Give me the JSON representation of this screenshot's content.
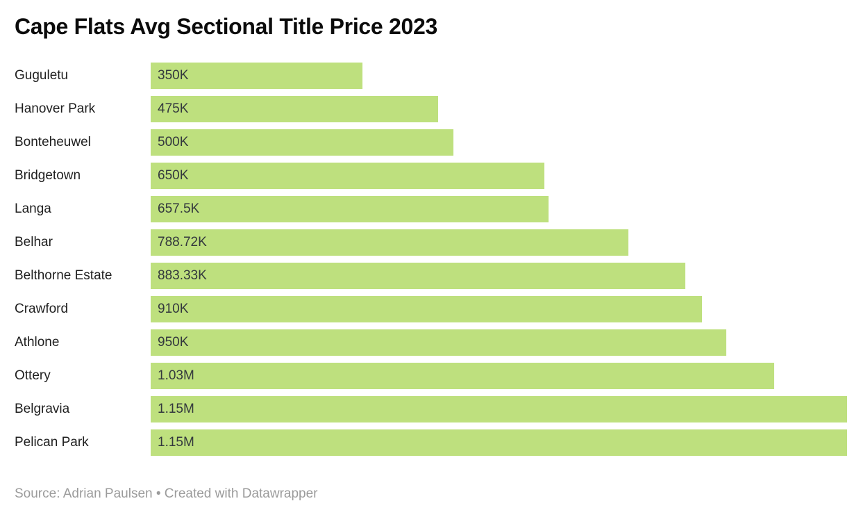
{
  "title": "Cape Flats Avg Sectional Title Price 2023",
  "footer": {
    "full_text": "Source: Adrian Paulsen • Created with Datawrapper"
  },
  "colors": {
    "background": "#ffffff",
    "bar_fill": "#bee07e",
    "title_text": "#0b0b0b",
    "category_label_text": "#1f1f1f",
    "value_label_text": "#33383d",
    "footer_text": "#9b9b9b"
  },
  "chart_data": {
    "type": "bar",
    "orientation": "horizontal",
    "title": "Cape Flats Avg Sectional Title Price 2023",
    "categories": [
      "Guguletu",
      "Hanover Park",
      "Bonteheuwel",
      "Bridgetown",
      "Langa",
      "Belhar",
      "Belthorne Estate",
      "Crawford",
      "Athlone",
      "Ottery",
      "Belgravia",
      "Pelican Park"
    ],
    "values": [
      350000,
      475000,
      500000,
      650000,
      657500,
      788720,
      883330,
      910000,
      950000,
      1030000,
      1150000,
      1150000
    ],
    "value_labels": [
      "350K",
      "475K",
      "500K",
      "650K",
      "657.5K",
      "788.72K",
      "883.33K",
      "910K",
      "950K",
      "1.03M",
      "1.15M",
      "1.15M"
    ],
    "xlim": [
      0,
      1150000
    ],
    "value_label_position": "inside-start",
    "grid": "off",
    "legend": "none",
    "source_text": "Source: Adrian Paulsen • Created with Datawrapper"
  }
}
